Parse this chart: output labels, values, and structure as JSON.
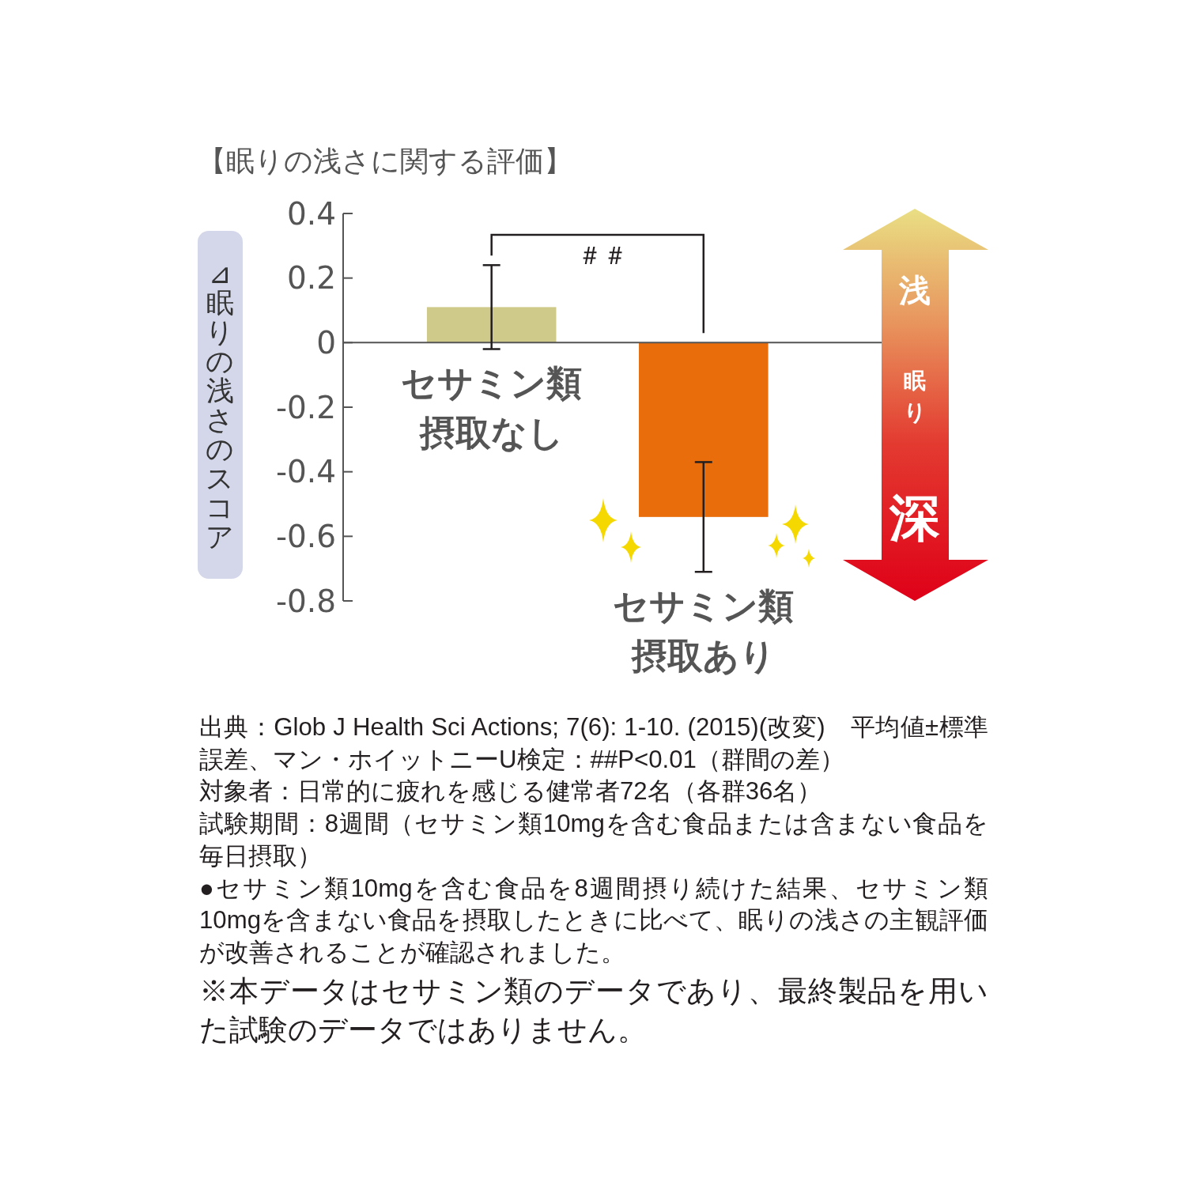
{
  "chart_data": {
    "type": "bar",
    "title": "【眠りの浅さに関する評価】",
    "ylabel": "⊿眠りの浅さのスコア",
    "categories": [
      "セサミン類摂取なし",
      "セサミン類摂取あり"
    ],
    "values": [
      0.11,
      -0.54
    ],
    "errors": [
      0.13,
      0.17
    ],
    "colors": [
      "#cfc98a",
      "#e96d0b"
    ],
    "ylim": [
      -0.8,
      0.4
    ],
    "yticks": [
      -0.8,
      -0.6,
      -0.4,
      -0.2,
      0,
      0.2,
      0.4
    ],
    "annotations": [
      "＃＃",
      "浅",
      "眠り",
      "深",
      "出典：Glob J Health Sci Actions; 7(6): 1-10. (2015)(改変)　平均値±標準誤差、マン・ホイットニーU検定：##P<0.01（群間の差）",
      "対象者：日常的に疲れを感じる健常者72名（各群36名）",
      "試験期間：8週間（セサミン類10mgを含む食品または含まない食品を毎日摂取）",
      "●セサミン類10mgを含む食品を8週間摂り続けた結果、セサミン類10mgを含まない食品を摂取したときに比べて、眠りの浅さの主観評価が改善されることが確認されました。",
      "※本データはセサミン類のデータであり、最終製品を用いた試験のデータではありません。"
    ]
  }
}
